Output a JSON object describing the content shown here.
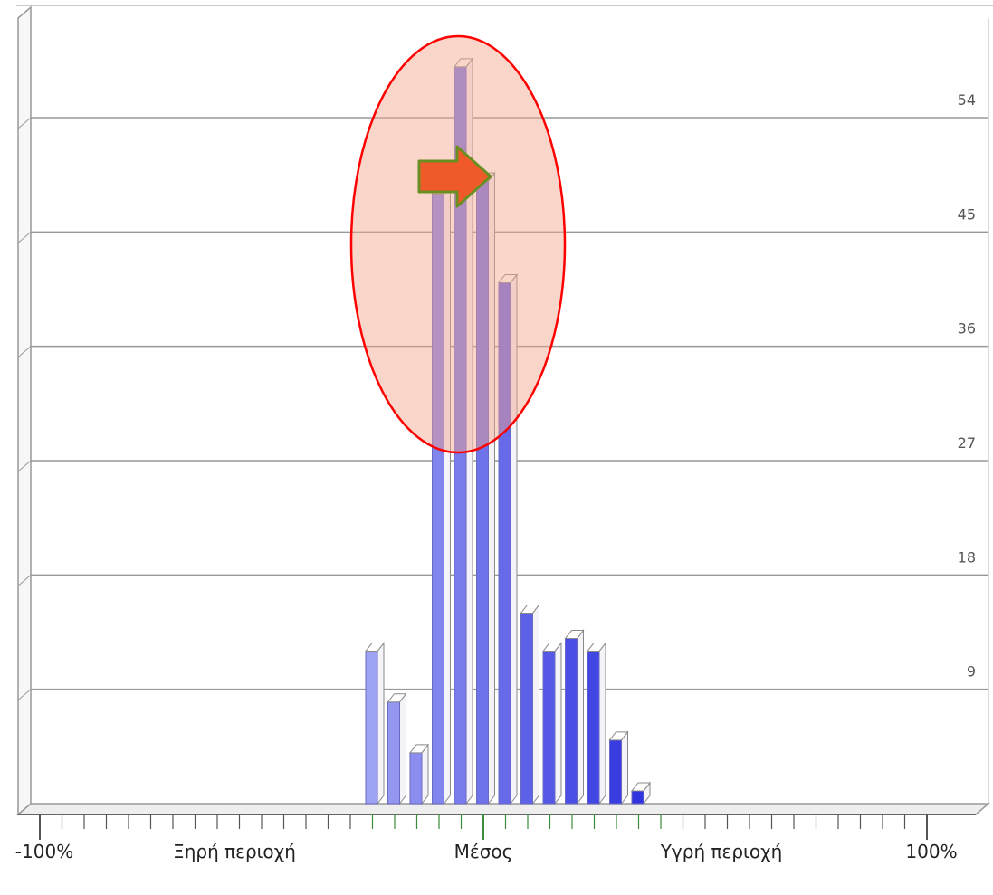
{
  "chart_data": {
    "type": "bar",
    "x_axis_labels": [
      "-100%",
      "Ξηρή περιοχή",
      "Μέσος",
      "Υγρή περιοχή",
      "100%"
    ],
    "y_ticks": [
      9,
      18,
      27,
      36,
      45,
      54
    ],
    "ylim": [
      0,
      60
    ],
    "grid": true,
    "values": [
      12,
      8,
      4,
      48,
      58,
      49,
      41,
      15,
      12,
      13,
      12,
      5,
      1
    ],
    "bar_colors": [
      "#9ea2f2",
      "#9497f0",
      "#8b8eef",
      "#8186ee",
      "#787cec",
      "#6f73ea",
      "#666ae9",
      "#5d61e7",
      "#5458e5",
      "#4b4fe3",
      "#4246e2",
      "#393de0",
      "#3034de"
    ],
    "highlight_ellipse_color": "#ff0000",
    "highlight_fill_color": "#f4a28a",
    "arrow_color": "#f05a28",
    "arrow_border_color": "#6b8e23"
  }
}
